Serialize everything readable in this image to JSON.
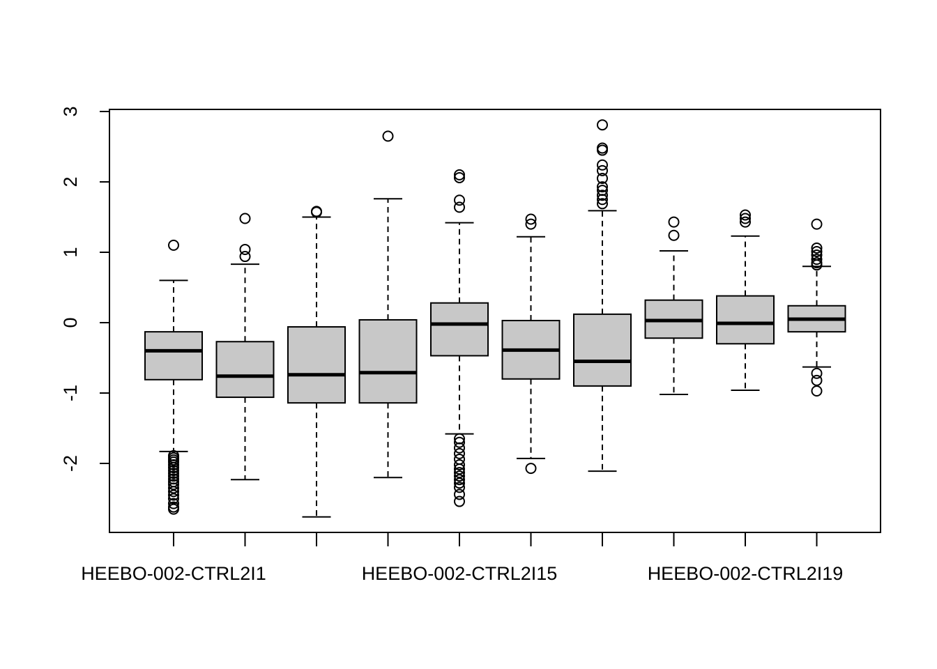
{
  "chart_data": {
    "type": "boxplot",
    "title": "",
    "xlabel": "",
    "ylabel": "",
    "ylim": [
      -2.95,
      3.0
    ],
    "y_ticks": [
      -2,
      -1,
      0,
      1,
      2,
      3
    ],
    "y_tick_labels": [
      "-2",
      "-1",
      "0",
      "1",
      "2",
      "3"
    ],
    "x_tick_labels": [
      "HEEBO-002-CTRL2I1",
      "",
      "",
      "",
      "HEEBO-002-CTRL2I15",
      "",
      "",
      "",
      "HEEBO-002-CTRL2I19",
      ""
    ],
    "box_fill": "#c8c8c8",
    "line_color": "#000000",
    "grid": false,
    "boxes": [
      {
        "whisker_low": -1.83,
        "q1": -0.81,
        "median": -0.4,
        "q3": -0.13,
        "whisker_high": 0.6,
        "outliers": [
          1.1,
          -1.89,
          -1.92,
          -1.95,
          -1.98,
          -2.02,
          -2.06,
          -2.1,
          -2.14,
          -2.18,
          -2.22,
          -2.26,
          -2.3,
          -2.35,
          -2.4,
          -2.45,
          -2.5,
          -2.57,
          -2.62,
          -2.65
        ]
      },
      {
        "whisker_low": -2.23,
        "q1": -1.06,
        "median": -0.76,
        "q3": -0.27,
        "whisker_high": 0.83,
        "outliers": [
          1.48,
          1.04,
          0.94
        ]
      },
      {
        "whisker_low": -2.76,
        "q1": -1.14,
        "median": -0.74,
        "q3": -0.06,
        "whisker_high": 1.5,
        "outliers": [
          1.58,
          1.57
        ]
      },
      {
        "whisker_low": -2.2,
        "q1": -1.14,
        "median": -0.71,
        "q3": 0.04,
        "whisker_high": 1.76,
        "outliers": [
          2.65
        ]
      },
      {
        "whisker_low": -1.58,
        "q1": -0.47,
        "median": -0.02,
        "q3": 0.28,
        "whisker_high": 1.42,
        "outliers": [
          2.1,
          2.06,
          1.74,
          1.64,
          -1.65,
          -1.7,
          -1.78,
          -1.86,
          -1.94,
          -2.02,
          -2.08,
          -2.13,
          -2.18,
          -2.23,
          -2.28,
          -2.34,
          -2.44,
          -2.54
        ]
      },
      {
        "whisker_low": -1.93,
        "q1": -0.8,
        "median": -0.39,
        "q3": 0.03,
        "whisker_high": 1.22,
        "outliers": [
          1.47,
          1.4,
          -2.07
        ]
      },
      {
        "whisker_low": -2.11,
        "q1": -0.9,
        "median": -0.55,
        "q3": 0.12,
        "whisker_high": 1.59,
        "outliers": [
          2.81,
          2.48,
          2.45,
          2.24,
          2.16,
          2.05,
          1.93,
          1.88,
          1.81,
          1.75,
          1.69
        ]
      },
      {
        "whisker_low": -1.02,
        "q1": -0.22,
        "median": 0.03,
        "q3": 0.32,
        "whisker_high": 1.02,
        "outliers": [
          1.43,
          1.24
        ]
      },
      {
        "whisker_low": -0.96,
        "q1": -0.3,
        "median": -0.01,
        "q3": 0.38,
        "whisker_high": 1.23,
        "outliers": [
          1.53,
          1.48,
          1.43
        ]
      },
      {
        "whisker_low": -0.63,
        "q1": -0.13,
        "median": 0.05,
        "q3": 0.24,
        "whisker_high": 0.8,
        "outliers": [
          1.4,
          1.06,
          1.01,
          0.96,
          0.9,
          0.85,
          0.82,
          -0.72,
          -0.82,
          -0.97
        ]
      }
    ]
  }
}
